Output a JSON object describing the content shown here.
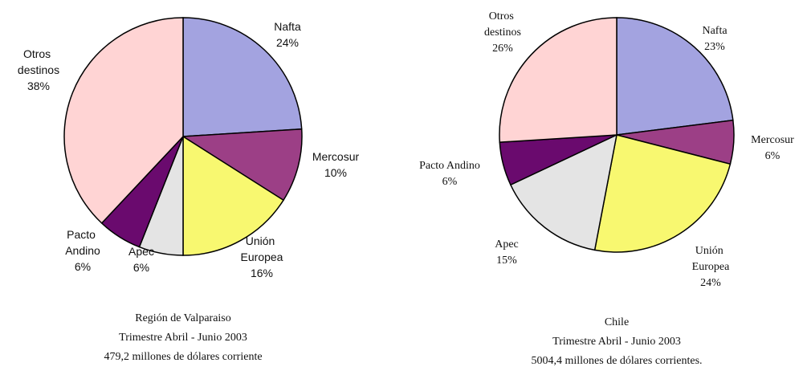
{
  "chart_data": [
    {
      "type": "pie",
      "categories": [
        "Nafta",
        "Mercosur",
        "Unión Europea",
        "Apec",
        "Pacto Andino",
        "Otros destinos"
      ],
      "values": [
        24,
        10,
        16,
        6,
        6,
        38
      ],
      "value_labels": [
        "24%",
        "10%",
        "16%",
        "6%",
        "6%",
        "38%"
      ],
      "colors": [
        "#a3a3e0",
        "#9c3f86",
        "#f8f870",
        "#e4e4e4",
        "#6a0a6e",
        "#ffd4d4"
      ],
      "caption": [
        "Región de Valparaiso",
        "Trimestre Abril - Junio 2003",
        "479,2 millones de dólares corriente"
      ]
    },
    {
      "type": "pie",
      "categories": [
        "Nafta",
        "Mercosur",
        "Unión Europea",
        "Apec",
        "Pacto Andino",
        "Otros destinos"
      ],
      "values": [
        23,
        6,
        24,
        15,
        6,
        26
      ],
      "value_labels": [
        "23%",
        "6%",
        "24%",
        "15%",
        "6%",
        "26%"
      ],
      "colors": [
        "#a3a3e0",
        "#9c3f86",
        "#f8f870",
        "#e4e4e4",
        "#6a0a6e",
        "#ffd4d4"
      ],
      "caption": [
        "Chile",
        "Trimestre Abril - Junio 2003",
        "5004,4 millones de dólares  corrientes."
      ]
    }
  ]
}
